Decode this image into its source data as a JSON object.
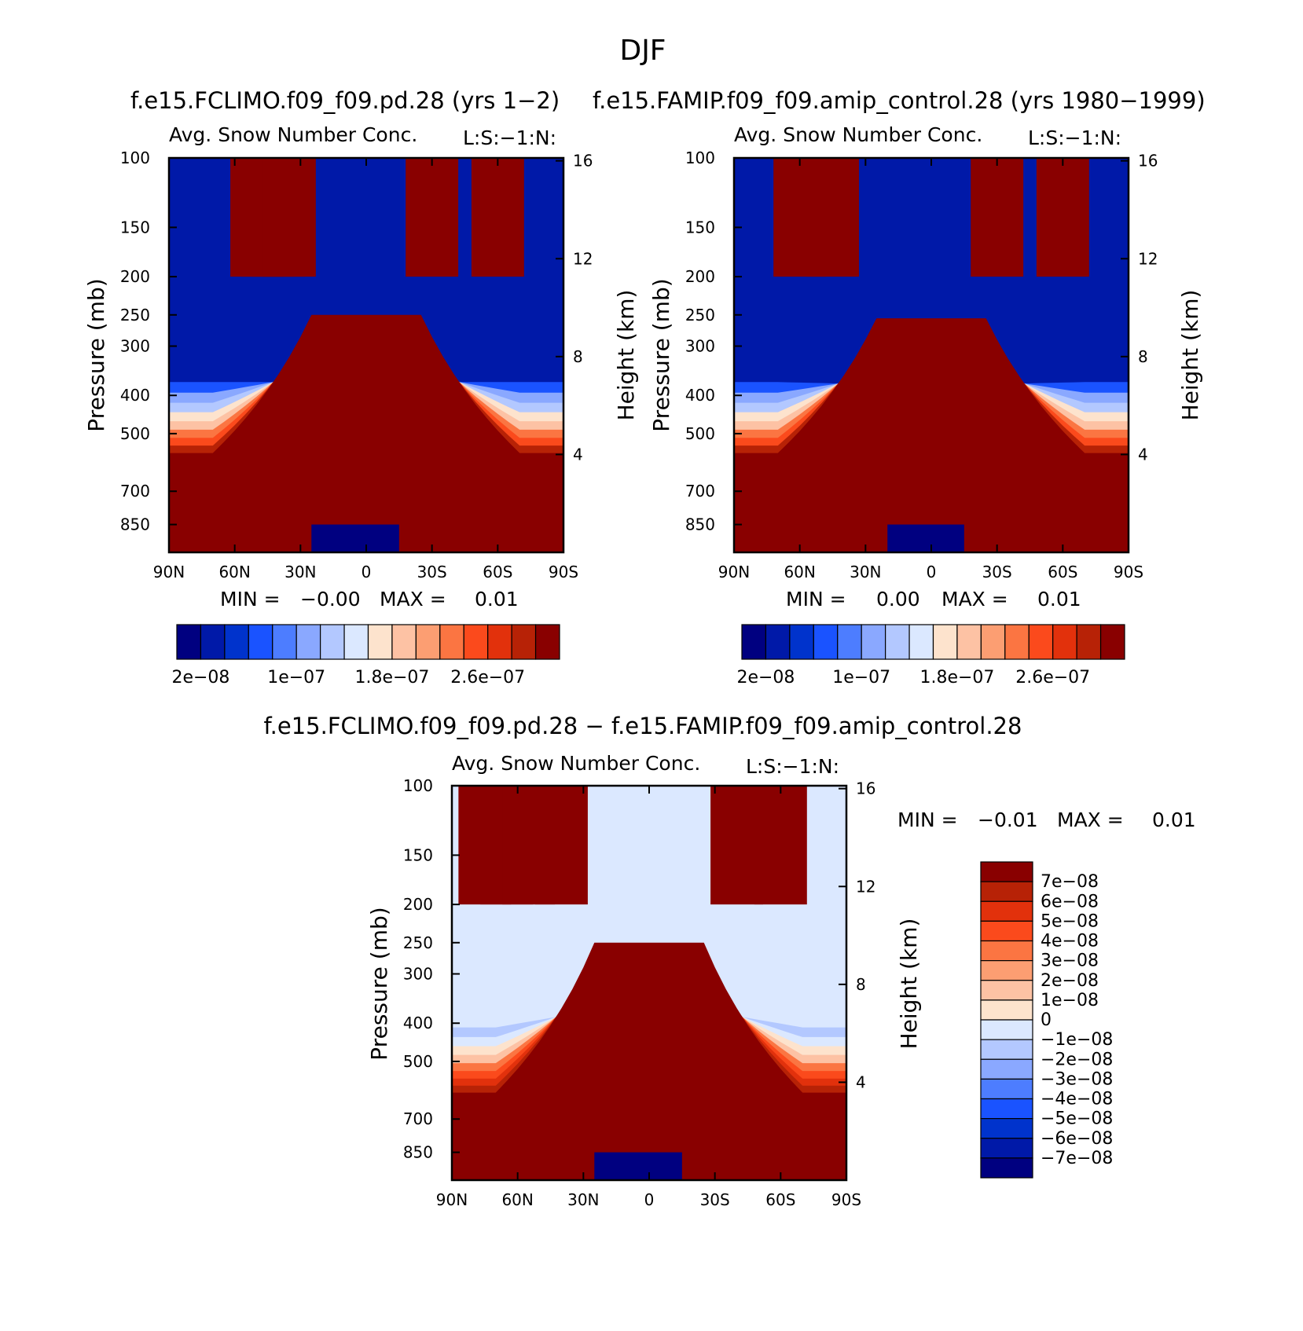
{
  "figure": {
    "title": "DJF",
    "diff_title": "f.e15.FCLIMO.f09_f09.pd.28 − f.e15.FAMIP.f09_f09.amip_control.28"
  },
  "colors": {
    "abs_scale": [
      "#000080",
      "#0019a8",
      "#0033cc",
      "#1a53ff",
      "#4d7dff",
      "#8aa8ff",
      "#b3c8ff",
      "#dbe8ff",
      "#fde3cd",
      "#fdc2a4",
      "#fc9e72",
      "#fb7542",
      "#fb4a1c",
      "#e2310c",
      "#b72206",
      "#890000"
    ],
    "diff_scale": [
      "#000080",
      "#0019a8",
      "#0033cc",
      "#1a53ff",
      "#4d7dff",
      "#8aa8ff",
      "#b3c8ff",
      "#dbe8ff",
      "#fde3cd",
      "#fdc2a4",
      "#fc9e72",
      "#fb7542",
      "#fb4a1c",
      "#e2310c",
      "#b72206",
      "#890000"
    ]
  },
  "chart_data": [
    {
      "type": "heatmap",
      "title": "f.e15.FCLIMO.f09_f09.pd.28 (yrs 1−2)",
      "subtitle": "Avg. Snow Number Conc.",
      "corner_label": "L:S:−1:N:",
      "ylabel": "Pressure (mb)",
      "y2label": "Height (km)",
      "x_ticks": [
        "90N",
        "60N",
        "30N",
        "0",
        "30S",
        "60S",
        "90S"
      ],
      "x_range": [
        90,
        -90
      ],
      "y_ticks": [
        100,
        150,
        200,
        250,
        300,
        400,
        500,
        700,
        850
      ],
      "y_range": [
        100,
        1000
      ],
      "y2_ticks": [
        16,
        12,
        8,
        4
      ],
      "min_label": "MIN =",
      "min_value": "−0.00",
      "max_label": "MAX =",
      "max_value": "0.01",
      "colorbar_labels": [
        "2e−08",
        "1e−07",
        "1.8e−07",
        "2.6e−07"
      ],
      "features": {
        "high_band_cols": [
          50,
          45,
          40,
          35,
          -30,
          -60
        ],
        "trop_top_mb": 250,
        "mid_edge_mb": 560,
        "blue_pool": [
          -15,
          25
        ]
      }
    },
    {
      "type": "heatmap",
      "title": "f.e15.FAMIP.f09_f09.amip_control.28 (yrs 1980−1999)",
      "subtitle": "Avg. Snow Number Conc.",
      "corner_label": "L:S:−1:N:",
      "ylabel": "Pressure (mb)",
      "y2label": "Height (km)",
      "x_ticks": [
        "90N",
        "60N",
        "30N",
        "0",
        "30S",
        "60S",
        "90S"
      ],
      "x_range": [
        90,
        -90
      ],
      "y_ticks": [
        100,
        150,
        200,
        250,
        300,
        400,
        500,
        700,
        850
      ],
      "y_range": [
        100,
        1000
      ],
      "y2_ticks": [
        16,
        12,
        8,
        4
      ],
      "min_label": "MIN =",
      "min_value": "0.00",
      "max_label": "MAX =",
      "max_value": "0.01",
      "colorbar_labels": [
        "2e−08",
        "1e−07",
        "1.8e−07",
        "2.6e−07"
      ],
      "features": {
        "high_band_cols": [
          60,
          45,
          -30,
          -60
        ],
        "trop_top_mb": 255,
        "mid_edge_mb": 560,
        "blue_pool": [
          -15,
          20
        ]
      }
    },
    {
      "type": "heatmap",
      "title": "",
      "subtitle": "Avg. Snow Number Conc.",
      "corner_label": "L:S:−1:N:",
      "ylabel": "Pressure (mb)",
      "y2label": "Height (km)",
      "x_ticks": [
        "90N",
        "60N",
        "30N",
        "0",
        "30S",
        "60S",
        "90S"
      ],
      "x_range": [
        90,
        -90
      ],
      "y_ticks": [
        100,
        150,
        200,
        250,
        300,
        400,
        500,
        700,
        850
      ],
      "y_range": [
        100,
        1000
      ],
      "y2_ticks": [
        16,
        12,
        8,
        4
      ],
      "min_label": "MIN =",
      "min_value": "−0.01",
      "max_label": "MAX =",
      "max_value": "0.01",
      "colorbar_labels": [
        "7e−08",
        "6e−08",
        "5e−08",
        "4e−08",
        "3e−08",
        "2e−08",
        "1e−08",
        "0",
        "−1e−08",
        "−2e−08",
        "−3e−08",
        "−4e−08",
        "−5e−08",
        "−6e−08",
        "−7e−08"
      ],
      "features": {
        "high_band_cols": [
          75,
          65,
          55,
          40,
          -40,
          -60
        ],
        "trop_top_mb": 250,
        "mid_edge_mb": 600,
        "blue_pool": [
          -15,
          25
        ]
      }
    }
  ]
}
